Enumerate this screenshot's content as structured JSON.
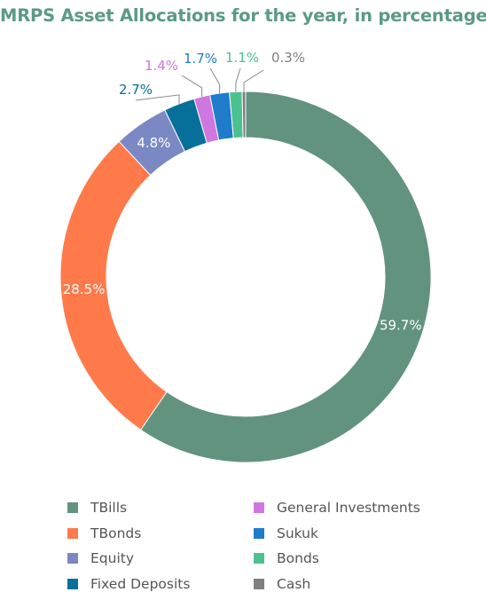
{
  "chart_data": {
    "type": "pie",
    "title": "MRPS Asset Allocations for the year, in percentage",
    "slices": [
      {
        "name": "TBills",
        "value": 59.7,
        "label": "59.7%",
        "color": "#62937f"
      },
      {
        "name": "TBonds",
        "value": 28.5,
        "label": "28.5%",
        "color": "#ff7a4b"
      },
      {
        "name": "Equity",
        "value": 4.8,
        "label": "4.8%",
        "color": "#7a89c3"
      },
      {
        "name": "Fixed Deposits",
        "value": 2.7,
        "label": "2.7%",
        "color": "#06709a"
      },
      {
        "name": "General Investments",
        "value": 1.4,
        "label": "1.4%",
        "color": "#cf77e1"
      },
      {
        "name": "Sukuk",
        "value": 1.7,
        "label": "1.7%",
        "color": "#1f7ccb"
      },
      {
        "name": "Bonds",
        "value": 1.1,
        "label": "1.1%",
        "color": "#4cc18f"
      },
      {
        "name": "Cash",
        "value": 0.3,
        "label": "0.3%",
        "color": "#7f7f7f"
      }
    ],
    "legend_position": "bottom"
  }
}
